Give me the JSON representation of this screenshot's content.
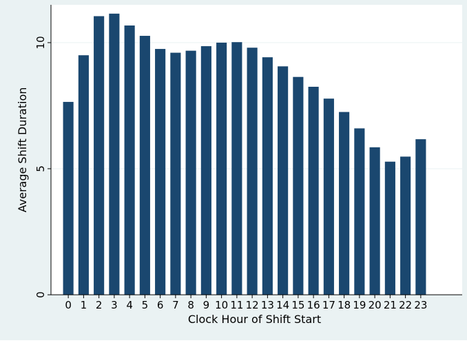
{
  "colors": {
    "outer_background": "#eaf2f3",
    "plot_background": "#ffffff",
    "bar": "#1a476f",
    "grid": "#eaf2f3",
    "text": "#000000"
  },
  "chart_data": {
    "type": "bar",
    "categories": [
      "0",
      "1",
      "2",
      "3",
      "4",
      "5",
      "6",
      "7",
      "8",
      "9",
      "10",
      "11",
      "12",
      "13",
      "14",
      "15",
      "16",
      "17",
      "18",
      "19",
      "20",
      "21",
      "22",
      "23"
    ],
    "values": [
      7.65,
      9.5,
      11.05,
      11.15,
      10.68,
      10.27,
      9.75,
      9.6,
      9.68,
      9.86,
      10.0,
      10.02,
      9.8,
      9.42,
      9.06,
      8.64,
      8.25,
      7.78,
      7.25,
      6.6,
      5.85,
      5.28,
      5.48,
      6.17
    ],
    "title": "",
    "xlabel": "Clock Hour of Shift Start",
    "ylabel": "Average Shift Duration",
    "ylim": [
      0,
      11.5
    ],
    "yticks": [
      0,
      5,
      10
    ],
    "grid": true,
    "legend": "none"
  }
}
